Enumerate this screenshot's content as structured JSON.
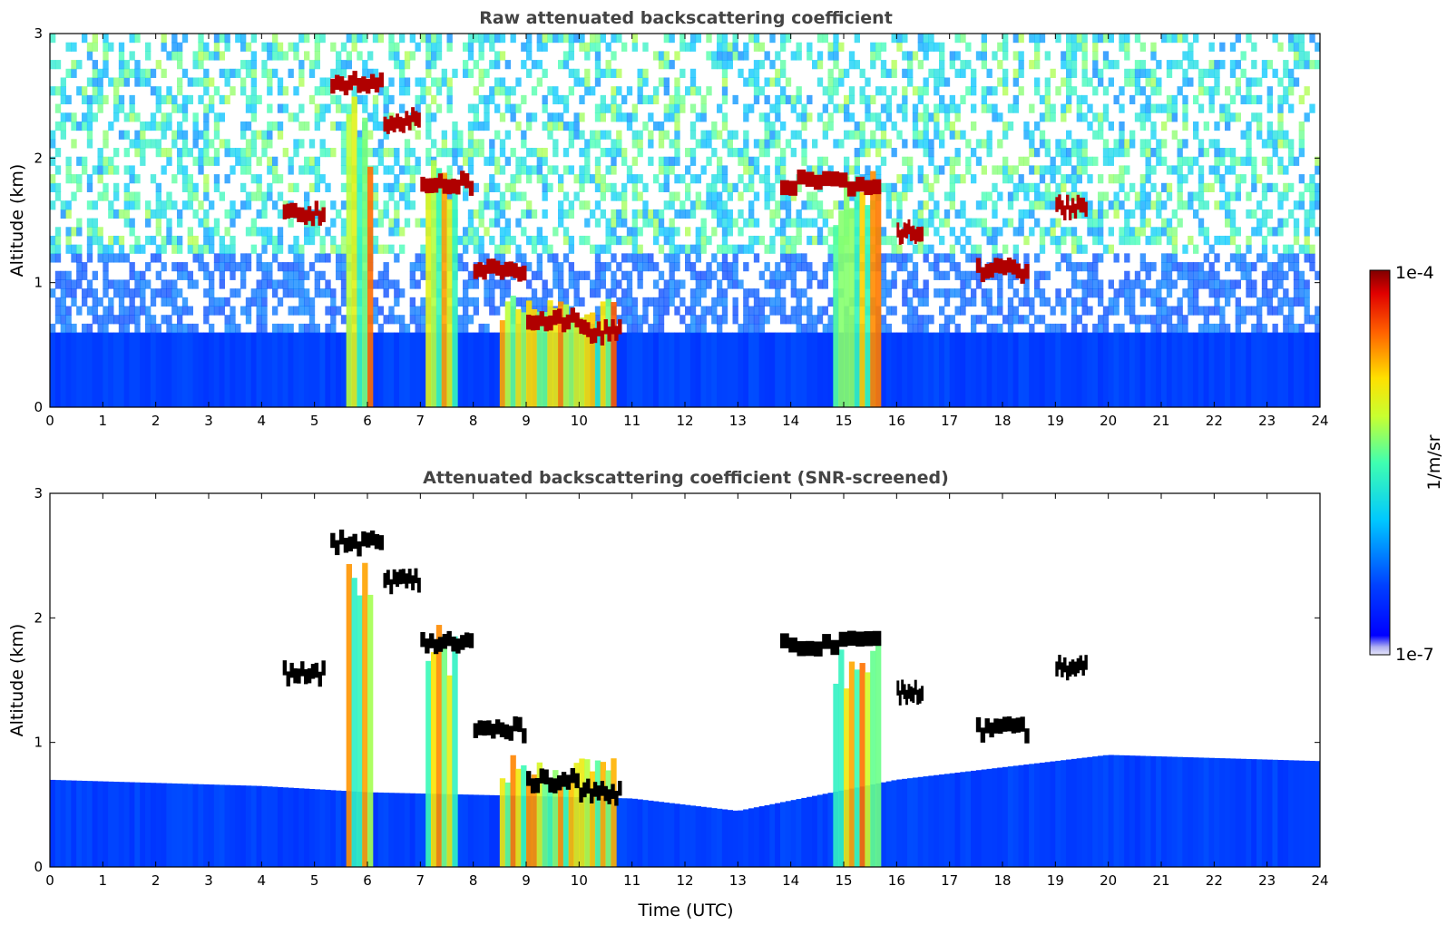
{
  "chart_data": [
    {
      "type": "heatmap",
      "title": "Raw attenuated backscattering coefficient",
      "xlabel": "",
      "ylabel": "Altitude (km)",
      "xlim": [
        0,
        24
      ],
      "ylim": [
        0,
        3
      ],
      "x_ticks": [
        0,
        1,
        2,
        3,
        4,
        5,
        6,
        7,
        8,
        9,
        10,
        11,
        12,
        13,
        14,
        15,
        16,
        17,
        18,
        19,
        20,
        21,
        22,
        23,
        24
      ],
      "y_ticks": [
        0,
        1,
        2,
        3
      ],
      "screened": false,
      "cloud_layers": [
        {
          "t0": 4.4,
          "t1": 5.2,
          "alt": 1.55
        },
        {
          "t0": 5.3,
          "t1": 6.3,
          "alt": 2.6
        },
        {
          "t0": 6.3,
          "t1": 7.0,
          "alt": 2.3
        },
        {
          "t0": 7.0,
          "t1": 8.0,
          "alt": 1.8
        },
        {
          "t0": 8.0,
          "t1": 9.0,
          "alt": 1.1
        },
        {
          "t0": 9.0,
          "t1": 10.0,
          "alt": 0.7
        },
        {
          "t0": 10.0,
          "t1": 10.8,
          "alt": 0.6
        },
        {
          "t0": 13.8,
          "t1": 15.7,
          "alt": 1.8
        },
        {
          "t0": 16.0,
          "t1": 16.5,
          "alt": 1.4
        },
        {
          "t0": 17.5,
          "t1": 18.5,
          "alt": 1.1
        },
        {
          "t0": 19.0,
          "t1": 19.6,
          "alt": 1.6
        }
      ],
      "precip_columns": [
        {
          "t0": 5.6,
          "t1": 6.1,
          "top": 2.5
        },
        {
          "t0": 7.1,
          "t1": 7.7,
          "top": 2.0
        },
        {
          "t0": 8.5,
          "t1": 10.7,
          "top": 0.9
        },
        {
          "t0": 14.8,
          "t1": 15.7,
          "top": 1.9
        }
      ]
    },
    {
      "type": "heatmap",
      "title": "Attenuated backscattering coefficient (SNR-screened)",
      "xlabel": "Time (UTC)",
      "ylabel": "Altitude (km)",
      "xlim": [
        0,
        24
      ],
      "ylim": [
        0,
        3
      ],
      "x_ticks": [
        0,
        1,
        2,
        3,
        4,
        5,
        6,
        7,
        8,
        9,
        10,
        11,
        12,
        13,
        14,
        15,
        16,
        17,
        18,
        19,
        20,
        21,
        22,
        23,
        24
      ],
      "y_ticks": [
        0,
        1,
        2,
        3
      ],
      "screened": true,
      "boundary_layer_top": [
        {
          "t": 0,
          "alt": 0.7
        },
        {
          "t": 4,
          "alt": 0.65
        },
        {
          "t": 6,
          "alt": 0.6
        },
        {
          "t": 11,
          "alt": 0.55
        },
        {
          "t": 13,
          "alt": 0.45
        },
        {
          "t": 16,
          "alt": 0.7
        },
        {
          "t": 20,
          "alt": 0.9
        },
        {
          "t": 24,
          "alt": 0.85
        }
      ]
    }
  ],
  "colorbar": {
    "label": "1/m/sr",
    "max_label": "1e-4",
    "min_label": "1e-7",
    "min_value": 1e-07,
    "max_value": 0.0001,
    "scale": "log",
    "colormap": "jet"
  }
}
